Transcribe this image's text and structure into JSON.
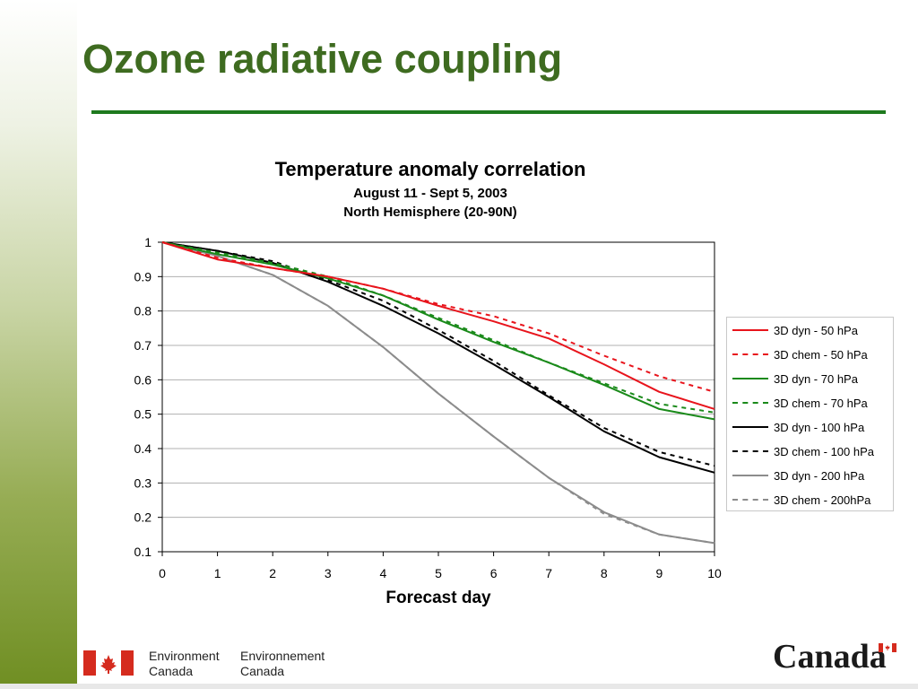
{
  "slide": {
    "title": "Ozone radiative coupling",
    "accent_color": "#3e6b20",
    "rule_color": "#1e7a1e"
  },
  "chart_data": {
    "type": "line",
    "title": "Temperature anomaly correlation",
    "subtitle_lines": [
      "August 11 - Sept 5, 2003",
      "North Hemisphere (20-90N)"
    ],
    "xlabel": "Forecast day",
    "ylabel": "",
    "xlim": [
      0,
      10
    ],
    "ylim": [
      0.1,
      1
    ],
    "x_ticks": [
      "0",
      "1",
      "2",
      "3",
      "4",
      "5",
      "6",
      "7",
      "8",
      "9",
      "10"
    ],
    "y_ticks": [
      "0.1",
      "0.2",
      "0.3",
      "0.4",
      "0.5",
      "0.6",
      "0.7",
      "0.8",
      "0.9",
      "1"
    ],
    "grid": "horizontal",
    "legend_position": "right",
    "x": [
      0,
      1,
      2,
      3,
      4,
      5,
      6,
      7,
      8,
      9,
      10
    ],
    "series": [
      {
        "name": "3D dyn - 50 hPa",
        "color": "#e8141c",
        "dash": "solid",
        "values": [
          1.0,
          0.95,
          0.925,
          0.9,
          0.865,
          0.815,
          0.77,
          0.72,
          0.645,
          0.565,
          0.515
        ]
      },
      {
        "name": "3D chem - 50 hPa",
        "color": "#e8141c",
        "dash": "dashed",
        "values": [
          1.0,
          0.955,
          0.925,
          0.9,
          0.865,
          0.82,
          0.785,
          0.735,
          0.67,
          0.61,
          0.565
        ]
      },
      {
        "name": "3D dyn - 70 hPa",
        "color": "#1a8a1a",
        "dash": "solid",
        "values": [
          1.0,
          0.965,
          0.935,
          0.895,
          0.845,
          0.775,
          0.71,
          0.65,
          0.585,
          0.515,
          0.485
        ]
      },
      {
        "name": "3D chem - 70 hPa",
        "color": "#1a8a1a",
        "dash": "dashed",
        "values": [
          1.0,
          0.97,
          0.94,
          0.9,
          0.845,
          0.78,
          0.715,
          0.65,
          0.59,
          0.53,
          0.505
        ]
      },
      {
        "name": "3D dyn - 100 hPa",
        "color": "#000000",
        "dash": "solid",
        "values": [
          1.0,
          0.975,
          0.94,
          0.885,
          0.815,
          0.735,
          0.645,
          0.55,
          0.45,
          0.375,
          0.33
        ]
      },
      {
        "name": "3D chem - 100 hPa",
        "color": "#000000",
        "dash": "dashed",
        "values": [
          1.0,
          0.975,
          0.945,
          0.89,
          0.83,
          0.745,
          0.655,
          0.555,
          0.46,
          0.39,
          0.35
        ]
      },
      {
        "name": "3D dyn - 200 hPa",
        "color": "#8c8c8c",
        "dash": "solid",
        "values": [
          1.0,
          0.96,
          0.905,
          0.815,
          0.695,
          0.56,
          0.435,
          0.315,
          0.215,
          0.15,
          0.125
        ]
      },
      {
        "name": "3D chem - 200hPa",
        "color": "#8c8c8c",
        "dash": "dashed",
        "values": [
          1.0,
          0.96,
          0.905,
          0.815,
          0.695,
          0.56,
          0.435,
          0.315,
          0.21,
          0.15,
          0.125
        ]
      }
    ]
  },
  "footer": {
    "dept_en": [
      "Environment",
      "Canada"
    ],
    "dept_fr": [
      "Environnement",
      "Canada"
    ],
    "wordmark": "Canada"
  }
}
